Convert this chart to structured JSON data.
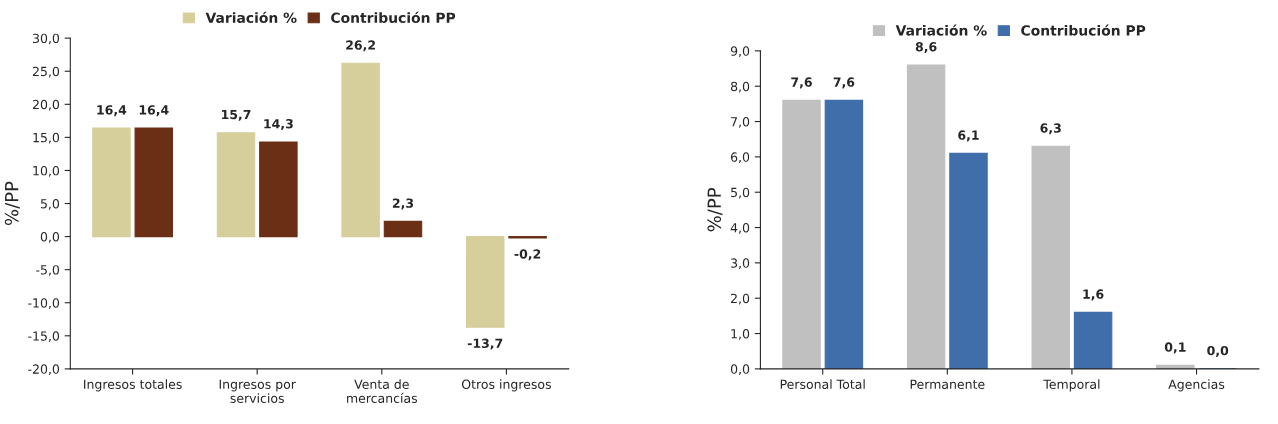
{
  "chart_data": [
    {
      "type": "bar",
      "ylabel": "%/PP",
      "categories": [
        "Ingresos totales",
        "Ingresos por\nservicios",
        "Venta de\nmercancías",
        "Otros ingresos"
      ],
      "series": [
        {
          "name": "Variación %",
          "color": "#d6cf9c",
          "values": [
            16.4,
            15.7,
            26.2,
            -13.7
          ],
          "value_labels": [
            "16,4",
            "15,7",
            "26,2",
            "-13,7"
          ]
        },
        {
          "name": "Contribución PP",
          "color": "#6b2f16",
          "values": [
            16.4,
            14.3,
            2.3,
            -0.2
          ],
          "value_labels": [
            "16,4",
            "14,3",
            "2,3",
            "-0,2"
          ]
        }
      ],
      "ylim": [
        -20,
        30
      ],
      "yticks": [
        {
          "value": -20,
          "label": "-20,0"
        },
        {
          "value": -15,
          "label": "-15,0"
        },
        {
          "value": -10,
          "label": "-10,0"
        },
        {
          "value": -5,
          "label": "-5,0"
        },
        {
          "value": 0,
          "label": "0,0"
        },
        {
          "value": 5,
          "label": "5,0"
        },
        {
          "value": 10,
          "label": "10,0"
        },
        {
          "value": 15,
          "label": "15,0"
        },
        {
          "value": 20,
          "label": "20,0"
        },
        {
          "value": 25,
          "label": "25,0"
        },
        {
          "value": 30,
          "label": "30,0"
        }
      ],
      "grid": false,
      "legend": "top"
    },
    {
      "type": "bar",
      "ylabel": "%/PP",
      "categories": [
        "Personal Total",
        "Permanente",
        "Temporal",
        "Agencias"
      ],
      "series": [
        {
          "name": "Variación %",
          "color": "#c0c0c0",
          "values": [
            7.6,
            8.6,
            6.3,
            0.1
          ],
          "value_labels": [
            "7,6",
            "8,6",
            "6,3",
            "0,1"
          ]
        },
        {
          "name": "Contribución PP",
          "color": "#3f6eab",
          "values": [
            7.6,
            6.1,
            1.6,
            0.0
          ],
          "value_labels": [
            "7,6",
            "6,1",
            "1,6",
            "0,0"
          ]
        }
      ],
      "ylim": [
        0,
        9
      ],
      "yticks": [
        {
          "value": 0,
          "label": "0,0"
        },
        {
          "value": 1,
          "label": "1,0"
        },
        {
          "value": 2,
          "label": "2,0"
        },
        {
          "value": 3,
          "label": "3,0"
        },
        {
          "value": 4,
          "label": "4,0"
        },
        {
          "value": 5,
          "label": "5,0"
        },
        {
          "value": 6,
          "label": "6,0"
        },
        {
          "value": 7,
          "label": "7,0"
        },
        {
          "value": 8,
          "label": "8,0"
        },
        {
          "value": 9,
          "label": "9,0"
        }
      ],
      "grid": false,
      "legend": "top"
    }
  ]
}
